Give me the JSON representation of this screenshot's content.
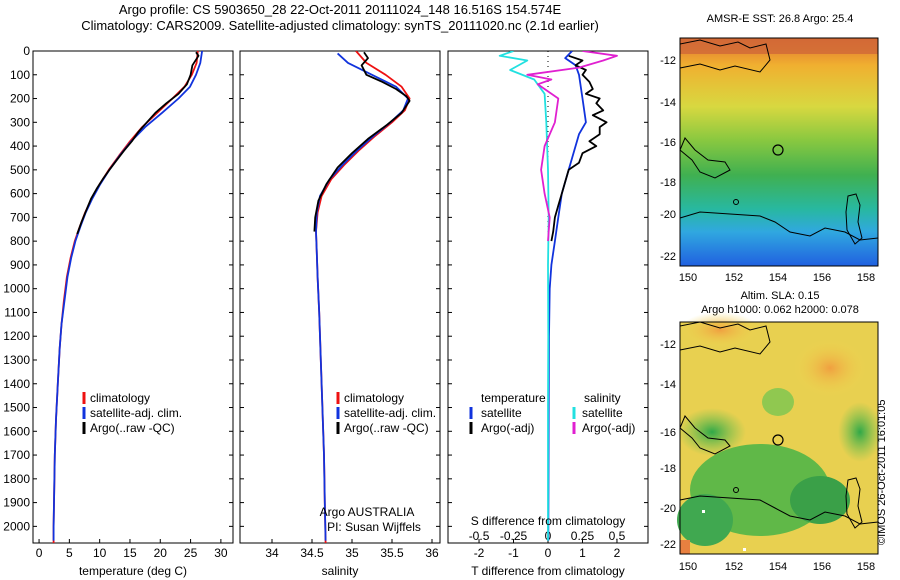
{
  "header": {
    "line1": "Argo profile: CS 5903650_28 22-Oct-2011 20111024_148 16.516S 154.574E",
    "line2": "Climatology: CARS2009. Satellite-adjusted climatology: synTS_20111020.nc (2.1d earlier)"
  },
  "colors": {
    "climatology": "#ee1111",
    "satellite": "#1133dd",
    "argo": "#000000",
    "satellite_s": "#22e0e0",
    "argo_s": "#e020d0"
  },
  "chart_data": [
    {
      "type": "line",
      "id": "temperature",
      "xlabel": "temperature (deg C)",
      "ylabel": "",
      "xlim": [
        -1,
        32
      ],
      "ylim": [
        2070,
        0
      ],
      "xticks": [
        0,
        5,
        10,
        15,
        20,
        25,
        30
      ],
      "yticks": [
        0,
        100,
        200,
        300,
        400,
        500,
        600,
        700,
        800,
        900,
        1000,
        1100,
        1200,
        1300,
        1400,
        1500,
        1600,
        1700,
        1800,
        1900,
        2000
      ],
      "legend": [
        "climatology",
        "satellite-adj. clim.",
        "Argo(..raw -QC)"
      ],
      "series": [
        {
          "name": "climatology",
          "color": "#ee1111",
          "points": [
            [
              26.2,
              0
            ],
            [
              26.0,
              50
            ],
            [
              25.2,
              100
            ],
            [
              24.0,
              150
            ],
            [
              22.0,
              200
            ],
            [
              19.5,
              260
            ],
            [
              17.0,
              320
            ],
            [
              15.0,
              380
            ],
            [
              13.2,
              440
            ],
            [
              11.5,
              500
            ],
            [
              10.0,
              560
            ],
            [
              8.7,
              620
            ],
            [
              7.6,
              680
            ],
            [
              6.7,
              740
            ],
            [
              5.9,
              800
            ],
            [
              5.2,
              870
            ],
            [
              4.6,
              950
            ],
            [
              4.1,
              1050
            ],
            [
              3.7,
              1150
            ],
            [
              3.4,
              1250
            ],
            [
              3.1,
              1400
            ],
            [
              2.8,
              1550
            ],
            [
              2.6,
              1700
            ],
            [
              2.5,
              1850
            ],
            [
              2.4,
              2000
            ],
            [
              2.4,
              2070
            ]
          ]
        },
        {
          "name": "satellite-adj. clim.",
          "color": "#1133dd",
          "points": [
            [
              26.9,
              0
            ],
            [
              26.6,
              50
            ],
            [
              25.9,
              100
            ],
            [
              24.9,
              150
            ],
            [
              23.0,
              200
            ],
            [
              20.3,
              260
            ],
            [
              17.5,
              320
            ],
            [
              15.2,
              380
            ],
            [
              13.3,
              440
            ],
            [
              11.6,
              500
            ],
            [
              10.1,
              560
            ],
            [
              8.8,
              620
            ],
            [
              7.7,
              680
            ],
            [
              6.8,
              740
            ],
            [
              6.0,
              800
            ],
            [
              5.3,
              870
            ],
            [
              4.7,
              950
            ],
            [
              4.2,
              1050
            ],
            [
              3.7,
              1150
            ],
            [
              3.4,
              1250
            ],
            [
              3.1,
              1400
            ],
            [
              2.8,
              1550
            ],
            [
              2.6,
              1700
            ],
            [
              2.5,
              1850
            ],
            [
              2.4,
              2000
            ],
            [
              2.4,
              2060
            ]
          ]
        },
        {
          "name": "Argo(..raw -QC)",
          "color": "#000000",
          "points": [
            [
              25.9,
              5
            ],
            [
              26.3,
              20
            ],
            [
              25.3,
              60
            ],
            [
              25.0,
              100
            ],
            [
              24.4,
              140
            ],
            [
              23.0,
              180
            ],
            [
              21.0,
              220
            ],
            [
              19.2,
              260
            ],
            [
              17.8,
              300
            ],
            [
              16.4,
              340
            ],
            [
              15.3,
              380
            ],
            [
              14.0,
              420
            ],
            [
              12.8,
              460
            ],
            [
              11.6,
              500
            ],
            [
              10.5,
              540
            ],
            [
              9.5,
              580
            ],
            [
              8.6,
              620
            ],
            [
              7.8,
              670
            ],
            [
              7.0,
              720
            ],
            [
              6.3,
              770
            ]
          ]
        }
      ]
    },
    {
      "type": "line",
      "id": "salinity",
      "xlabel": "salinity",
      "xlim": [
        33.6,
        36.1
      ],
      "ylim": [
        2070,
        0
      ],
      "xticks": [
        34,
        34.5,
        35,
        35.5,
        36
      ],
      "legend": [
        "climatology",
        "satellite-adj. clim.",
        "Argo(..raw -QC)"
      ],
      "annotation": [
        "Argo AUSTRALIA",
        "PI: Susan Wijffels"
      ],
      "series": [
        {
          "name": "climatology",
          "color": "#ee1111",
          "points": [
            [
              35.05,
              0
            ],
            [
              35.18,
              50
            ],
            [
              35.42,
              100
            ],
            [
              35.62,
              150
            ],
            [
              35.72,
              200
            ],
            [
              35.66,
              250
            ],
            [
              35.5,
              300
            ],
            [
              35.28,
              360
            ],
            [
              35.08,
              420
            ],
            [
              34.9,
              480
            ],
            [
              34.74,
              540
            ],
            [
              34.62,
              610
            ],
            [
              34.57,
              680
            ],
            [
              34.55,
              760
            ],
            [
              34.56,
              850
            ],
            [
              34.57,
              950
            ],
            [
              34.59,
              1100
            ],
            [
              34.61,
              1300
            ],
            [
              34.63,
              1500
            ],
            [
              34.65,
              1700
            ],
            [
              34.66,
              1900
            ],
            [
              34.67,
              2070
            ]
          ]
        },
        {
          "name": "satellite-adj. clim.",
          "color": "#1133dd",
          "points": [
            [
              34.82,
              10
            ],
            [
              34.95,
              50
            ],
            [
              35.25,
              100
            ],
            [
              35.55,
              150
            ],
            [
              35.7,
              200
            ],
            [
              35.64,
              250
            ],
            [
              35.48,
              300
            ],
            [
              35.26,
              360
            ],
            [
              35.06,
              420
            ],
            [
              34.88,
              480
            ],
            [
              34.72,
              540
            ],
            [
              34.6,
              610
            ],
            [
              34.56,
              680
            ],
            [
              34.55,
              760
            ],
            [
              34.56,
              850
            ],
            [
              34.57,
              950
            ],
            [
              34.59,
              1100
            ],
            [
              34.61,
              1300
            ],
            [
              34.63,
              1500
            ],
            [
              34.65,
              1700
            ],
            [
              34.66,
              1900
            ],
            [
              34.67,
              2060
            ]
          ]
        },
        {
          "name": "Argo(..raw -QC)",
          "color": "#000000",
          "points": [
            [
              35.15,
              5
            ],
            [
              35.2,
              30
            ],
            [
              35.12,
              60
            ],
            [
              35.18,
              100
            ],
            [
              35.38,
              130
            ],
            [
              35.55,
              160
            ],
            [
              35.68,
              190
            ],
            [
              35.72,
              210
            ],
            [
              35.62,
              260
            ],
            [
              35.44,
              310
            ],
            [
              35.2,
              370
            ],
            [
              35.0,
              430
            ],
            [
              34.82,
              490
            ],
            [
              34.68,
              560
            ],
            [
              34.58,
              630
            ],
            [
              34.54,
              700
            ],
            [
              34.53,
              760
            ]
          ]
        }
      ]
    },
    {
      "type": "line",
      "id": "differences",
      "xlabel": "T difference from climatology",
      "xlabel_top": "S difference from climatology",
      "xlim": [
        -2.9,
        2.9
      ],
      "ylim": [
        2070,
        0
      ],
      "xticks": [
        -2,
        -1,
        0,
        1,
        2
      ],
      "xticks_s_values": [
        -0.5,
        -0.25,
        0,
        0.25,
        0.5
      ],
      "xticks_s": [
        "-0.5",
        "-0.25",
        "0",
        "0.25",
        "0.5"
      ],
      "legend_t_heading": "temperature",
      "legend_s_heading": "salinity",
      "legend_t": [
        "satellite",
        "Argo(-adj)"
      ],
      "legend_s": [
        "satellite",
        "Argo(-adj)"
      ],
      "series": [
        {
          "name": "T satellite",
          "color": "#1133dd",
          "points": [
            [
              0.7,
              0
            ],
            [
              0.5,
              30
            ],
            [
              0.8,
              60
            ],
            [
              0.9,
              100
            ],
            [
              1.0,
              200
            ],
            [
              1.1,
              300
            ],
            [
              0.9,
              350
            ],
            [
              0.7,
              450
            ],
            [
              0.6,
              500
            ],
            [
              0.4,
              600
            ],
            [
              0.3,
              700
            ],
            [
              0.2,
              800
            ],
            [
              0.1,
              900
            ],
            [
              0.05,
              1000
            ],
            [
              0.03,
              1200
            ],
            [
              0.02,
              1500
            ],
            [
              0.01,
              2060
            ]
          ]
        },
        {
          "name": "T Argo(-adj)",
          "color": "#000000",
          "points": [
            [
              0.6,
              20
            ],
            [
              1.0,
              40
            ],
            [
              0.8,
              60
            ],
            [
              1.1,
              80
            ],
            [
              1.0,
              100
            ],
            [
              1.2,
              130
            ],
            [
              1.3,
              160
            ],
            [
              1.1,
              180
            ],
            [
              1.5,
              200
            ],
            [
              1.4,
              220
            ],
            [
              1.6,
              250
            ],
            [
              1.3,
              270
            ],
            [
              1.7,
              300
            ],
            [
              1.5,
              320
            ],
            [
              1.5,
              350
            ],
            [
              1.2,
              380
            ],
            [
              1.4,
              400
            ],
            [
              1.0,
              430
            ],
            [
              0.9,
              470
            ],
            [
              0.6,
              500
            ],
            [
              0.5,
              550
            ],
            [
              0.4,
              600
            ],
            [
              0.3,
              650
            ],
            [
              0.2,
              700
            ],
            [
              0.15,
              760
            ],
            [
              0.1,
              800
            ]
          ]
        },
        {
          "name": "S satellite",
          "color": "#22e0e0",
          "points": [
            [
              -1.0,
              0
            ],
            [
              -1.4,
              20
            ],
            [
              -0.6,
              40
            ],
            [
              -1.1,
              80
            ],
            [
              -0.4,
              120
            ],
            [
              -0.1,
              180
            ],
            [
              -0.05,
              300
            ],
            [
              0.0,
              500
            ],
            [
              0.02,
              700
            ],
            [
              0.0,
              900
            ],
            [
              0.01,
              1200
            ],
            [
              0.0,
              1500
            ],
            [
              0.0,
              2060
            ]
          ]
        },
        {
          "name": "S Argo(-adj)",
          "color": "#e020d0",
          "points": [
            [
              1.0,
              0
            ],
            [
              2.0,
              20
            ],
            [
              1.6,
              40
            ],
            [
              0.9,
              70
            ],
            [
              -0.6,
              100
            ],
            [
              0.1,
              120
            ],
            [
              -0.3,
              140
            ],
            [
              0.3,
              200
            ],
            [
              0.2,
              300
            ],
            [
              -0.1,
              400
            ],
            [
              -0.2,
              500
            ],
            [
              -0.1,
              600
            ],
            [
              0.05,
              700
            ],
            [
              0.0,
              800
            ]
          ]
        }
      ]
    }
  ],
  "maps": {
    "sst": {
      "title": "AMSR-E SST: 26.8 Argo: 25.4",
      "lon_ticks": [
        "150",
        "152",
        "154",
        "156",
        "158"
      ],
      "lat_ticks": [
        "-12",
        "-14",
        "-16",
        "-18",
        "-20",
        "-22"
      ]
    },
    "sla": {
      "title_line1": "Altim. SLA: 0.15",
      "title_line2": "Argo h1000: 0.062 h2000: 0.078",
      "lon_ticks": [
        "150",
        "152",
        "154",
        "156",
        "158"
      ],
      "lat_ticks": [
        "-12",
        "-14",
        "-16",
        "-18",
        "-20",
        "-22"
      ]
    }
  },
  "credit": "©IMOS 26-Oct-2011 16:01:05"
}
